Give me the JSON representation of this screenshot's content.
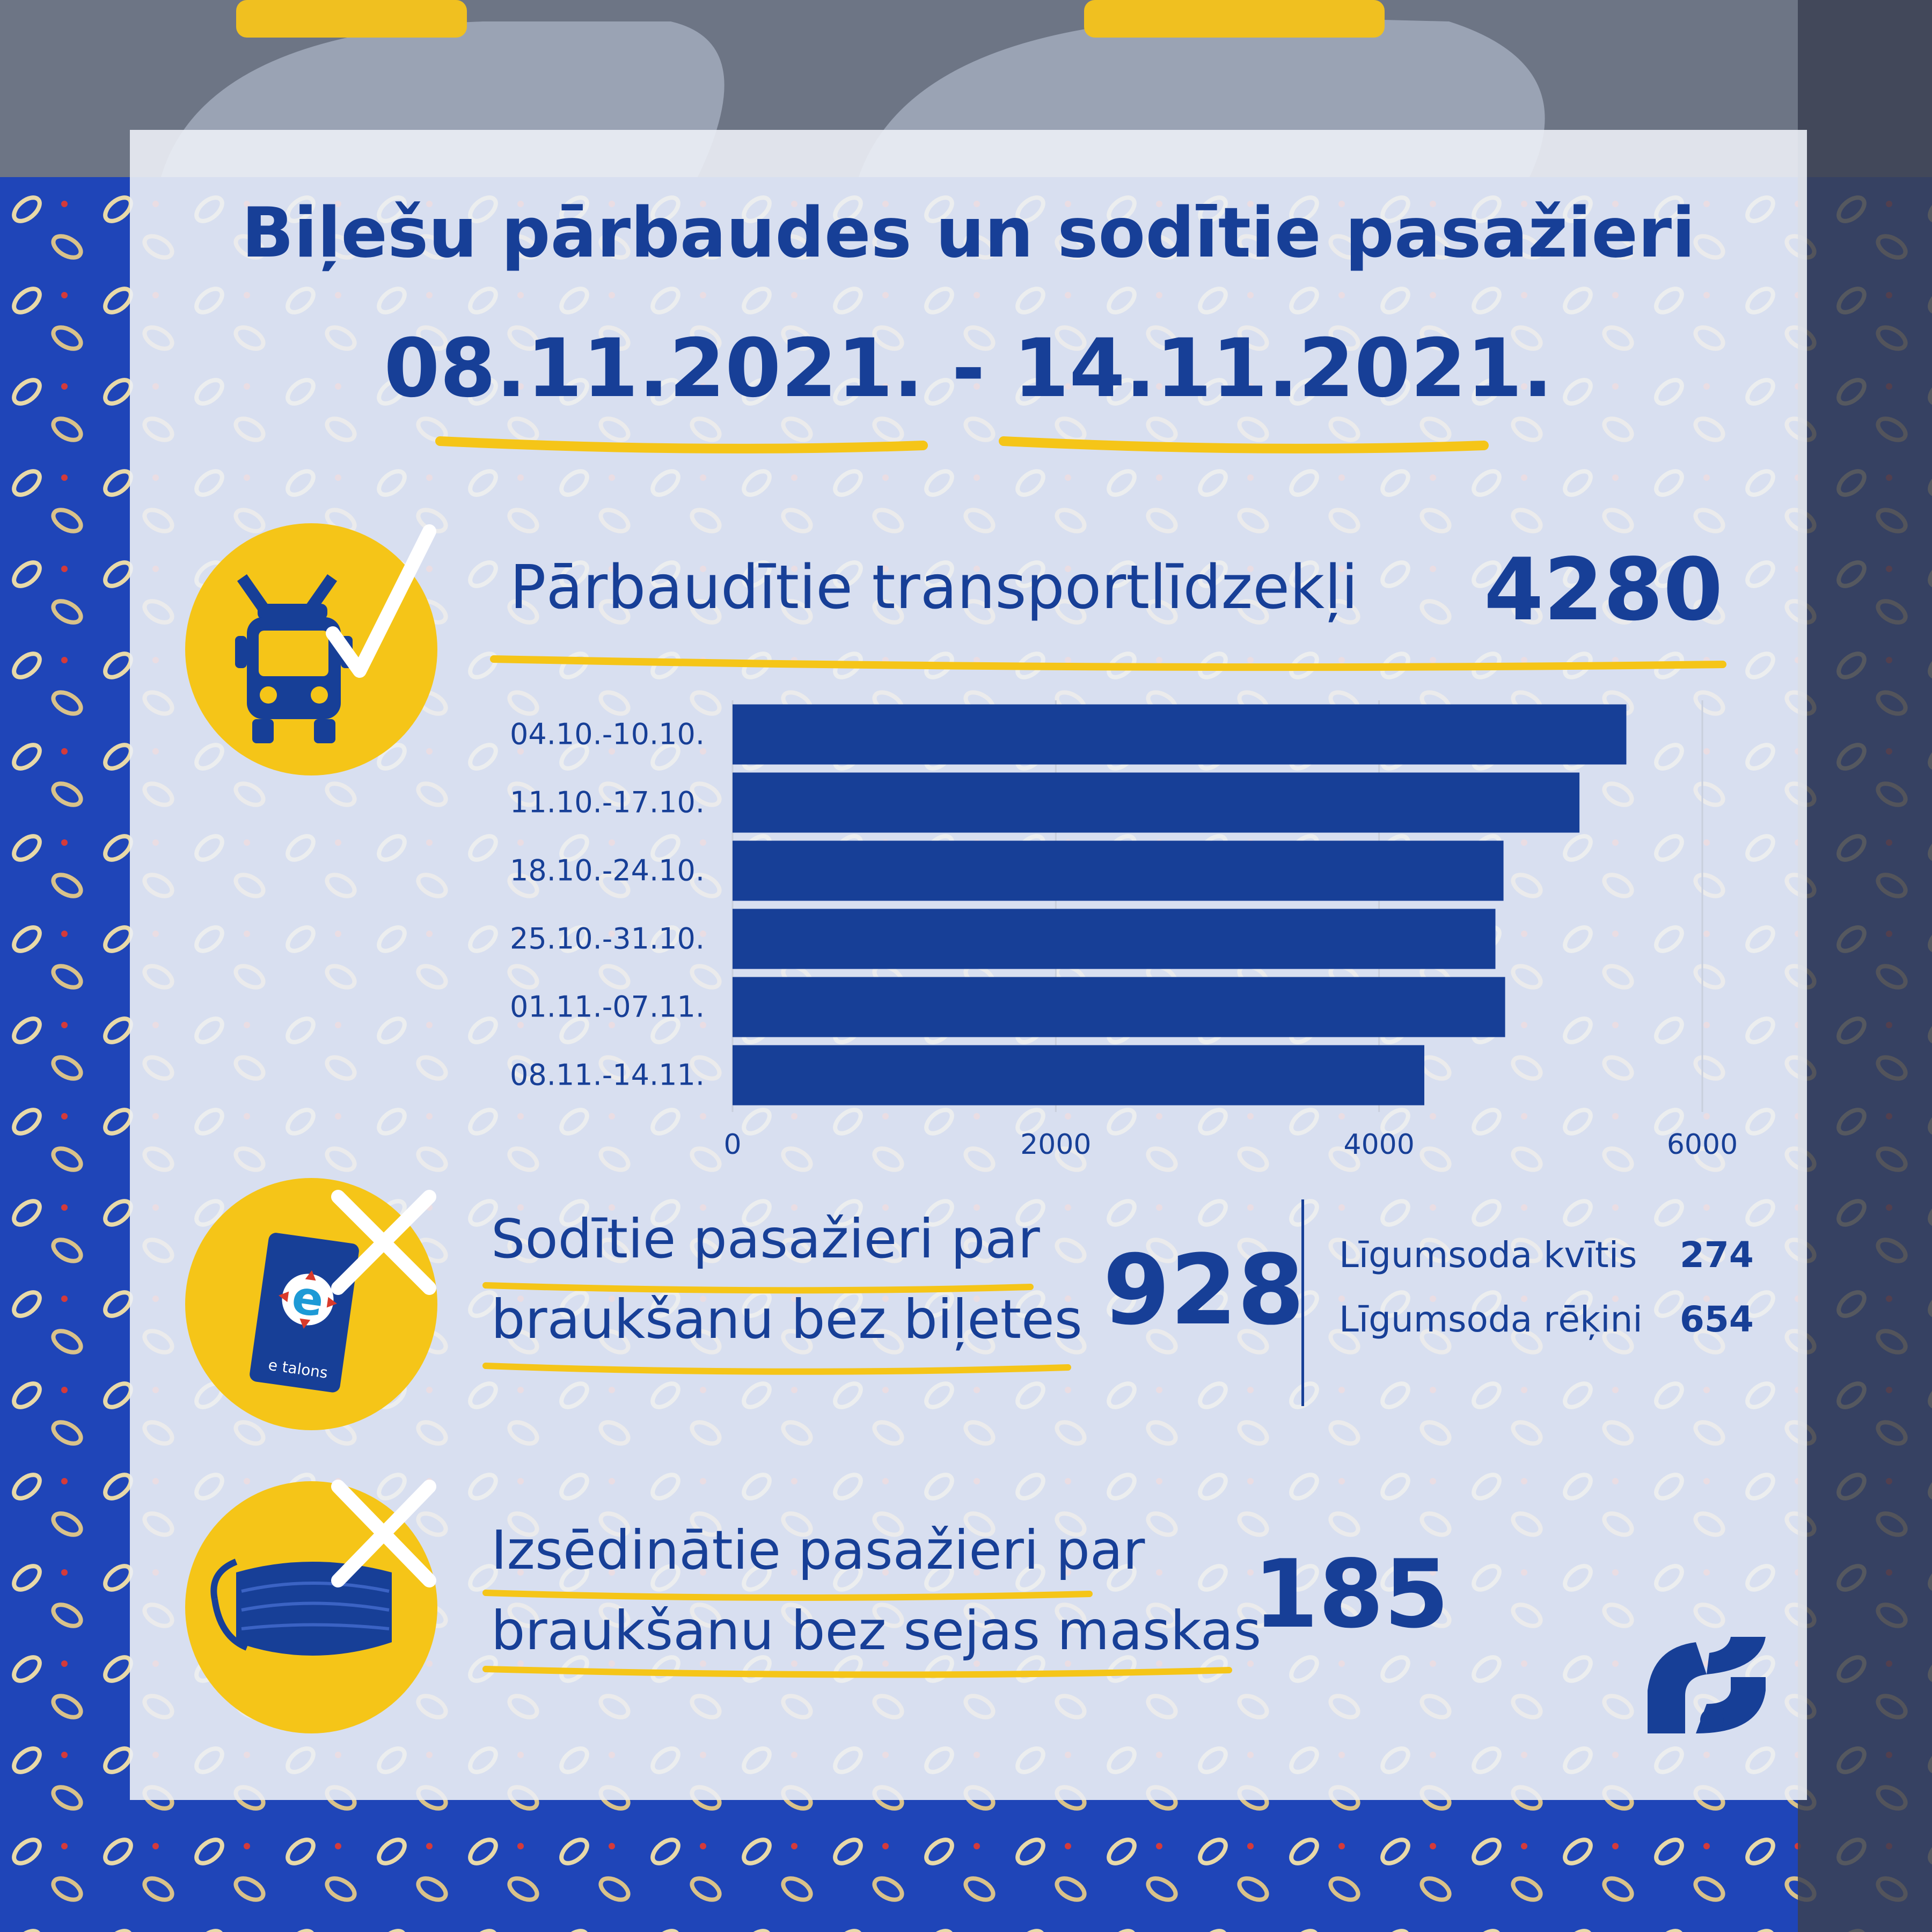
{
  "title": "Biļešu pārbaudes un sodītie pasažieri",
  "period": "08.11.2021. - 14.11.2021.",
  "vehicles": {
    "label": "Pārbaudītie transportlīdzekļi",
    "value": "4280",
    "icon": "trolleybus-check-icon"
  },
  "fined": {
    "label_line1": "Sodītie pasažieri par",
    "label_line2": "braukšanu bez biļetes",
    "value": "928",
    "icon": "etalons-card-cross-icon",
    "card_text": "e talons",
    "breakdown": [
      {
        "label": "Līgumsoda kvītis",
        "value": "274"
      },
      {
        "label": "Līgumsoda rēķini",
        "value": "654"
      }
    ]
  },
  "masks": {
    "label_line1": "Izsēdinātie pasažieri par",
    "label_line2": "braukšanu bez sejas maskas",
    "value": "185",
    "icon": "face-mask-cross-icon"
  },
  "logo": "rigas-satiksme-logo",
  "colors": {
    "brand_blue": "#173f97",
    "accent_yellow": "#f5c518",
    "panel": "#e9ecf4"
  },
  "chart_data": {
    "type": "bar",
    "orientation": "horizontal",
    "categories": [
      "04.10.-10.10.",
      "11.10.-17.10.",
      "18.10.-24.10.",
      "25.10.-31.10.",
      "01.11.-07.11.",
      "08.11.-14.11."
    ],
    "values": [
      5530,
      5240,
      4770,
      4720,
      4780,
      4280
    ],
    "xlim": [
      0,
      6000
    ],
    "xticks": [
      "0",
      "2000",
      "4000",
      "6000"
    ],
    "grid": true,
    "legend": "none"
  }
}
